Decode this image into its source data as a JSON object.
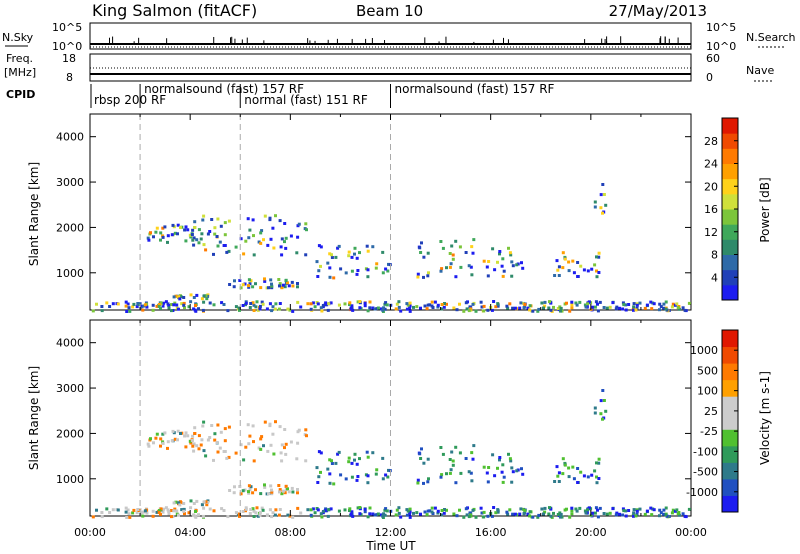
{
  "header": {
    "station": "King Salmon (fitACF)",
    "beam": "Beam 10",
    "date": "27/May/2013"
  },
  "summary_panel": {
    "left_labels": {
      "nsky": "N.Sky",
      "freq": "Freq.",
      "freq_unit": "[MHz]",
      "cpid": "CPID"
    },
    "right_labels": {
      "nsearch": "N.Search",
      "nave": "Nave"
    },
    "nsky_ticks": [
      "10^5",
      "10^0"
    ],
    "nsearch_ticks": [
      "10^5",
      "10^0"
    ],
    "freq_ticks": [
      "18",
      "8"
    ],
    "nave_ticks": [
      "60",
      "0"
    ]
  },
  "cpid_segments": [
    {
      "label": "rbsp 200 RF",
      "start_hour": 0.0,
      "row": 1
    },
    {
      "label": "normalsound (fast) 157 RF",
      "start_hour": 2.0,
      "row": 0
    },
    {
      "label": "normal (fast) 151 RF",
      "start_hour": 6.0,
      "row": 1
    },
    {
      "label": "normalsound (fast) 157 RF",
      "start_hour": 12.0,
      "row": 0
    }
  ],
  "chart_data": [
    {
      "type": "heatmap",
      "panel": "power",
      "ylabel": "Slant Range [km]",
      "ylim": [
        180,
        4500
      ],
      "yticks": [
        "1000",
        "2000",
        "3000",
        "4000"
      ],
      "xlim": [
        "00:00",
        "24:00"
      ],
      "colorbar_label": "Power [dB]",
      "colorbar_ticks": [
        "4",
        "8",
        "12",
        "16",
        "20",
        "24",
        "28"
      ],
      "colorbar_colors": [
        "#1c1cf0",
        "#2040b8",
        "#2e6aa8",
        "#2f8a6a",
        "#3fa85a",
        "#7cc53a",
        "#cfe03a",
        "#ffd21a",
        "#ffa000",
        "#ff7a00",
        "#f04a00",
        "#e01800"
      ],
      "echo_regions": [
        {
          "start": "02:00",
          "end": "05:00",
          "range_km": [
            1700,
            2100
          ]
        },
        {
          "start": "04:00",
          "end": "08:40",
          "range_km": [
            1400,
            2300
          ]
        },
        {
          "start": "05:30",
          "end": "08:20",
          "range_km": [
            700,
            900
          ]
        },
        {
          "start": "03:10",
          "end": "04:40",
          "range_km": [
            450,
            550
          ]
        },
        {
          "start": "09:00",
          "end": "12:00",
          "range_km": [
            900,
            1700
          ]
        },
        {
          "start": "13:00",
          "end": "15:20",
          "range_km": [
            900,
            1800
          ]
        },
        {
          "start": "15:40",
          "end": "17:20",
          "range_km": [
            900,
            1600
          ]
        },
        {
          "start": "18:20",
          "end": "20:20",
          "range_km": [
            900,
            1500
          ]
        },
        {
          "start": "20:00",
          "end": "20:40",
          "range_km": [
            2300,
            3000
          ]
        },
        {
          "start": "00:00",
          "end": "24:00",
          "range_km": [
            180,
            400
          ]
        }
      ]
    },
    {
      "type": "heatmap",
      "panel": "velocity",
      "ylabel": "Slant Range [km]",
      "xlabel": "Time UT",
      "ylim": [
        180,
        4500
      ],
      "yticks": [
        "1000",
        "2000",
        "3000",
        "4000"
      ],
      "xticks": [
        "00:00",
        "04:00",
        "08:00",
        "12:00",
        "16:00",
        "20:00",
        "00:00"
      ],
      "xlim": [
        "00:00",
        "24:00"
      ],
      "colorbar_label": "Velocity [m s-1]",
      "colorbar_ticks": [
        "1000",
        "500",
        "100",
        "25",
        "-25",
        "-100",
        "-500",
        "-1000"
      ],
      "colorbar_colors": [
        "#1c1cf0",
        "#2050c0",
        "#2e7a8a",
        "#2f9a5a",
        "#50c030",
        "#cccccc",
        "#cccccc",
        "#ffa000",
        "#ff7a00",
        "#f04a00",
        "#e01800"
      ],
      "echo_regions": [
        {
          "start": "02:00",
          "end": "05:00",
          "range_km": [
            1700,
            2100
          ]
        },
        {
          "start": "04:00",
          "end": "08:40",
          "range_km": [
            1400,
            2300
          ]
        },
        {
          "start": "05:30",
          "end": "08:20",
          "range_km": [
            700,
            900
          ]
        },
        {
          "start": "03:10",
          "end": "04:40",
          "range_km": [
            450,
            550
          ]
        },
        {
          "start": "09:00",
          "end": "12:00",
          "range_km": [
            900,
            1700
          ]
        },
        {
          "start": "13:00",
          "end": "15:20",
          "range_km": [
            900,
            1800
          ]
        },
        {
          "start": "15:40",
          "end": "17:20",
          "range_km": [
            900,
            1600
          ]
        },
        {
          "start": "18:20",
          "end": "20:20",
          "range_km": [
            900,
            1500
          ]
        },
        {
          "start": "20:00",
          "end": "20:40",
          "range_km": [
            2300,
            3000
          ]
        },
        {
          "start": "00:00",
          "end": "24:00",
          "range_km": [
            180,
            400
          ]
        }
      ]
    }
  ]
}
